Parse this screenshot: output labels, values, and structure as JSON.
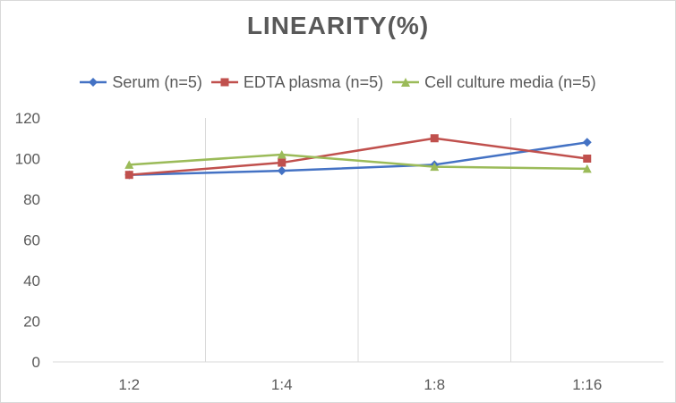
{
  "chart_data": {
    "type": "line",
    "title": "LINEARITY(%)",
    "categories": [
      "1:2",
      "1:4",
      "1:8",
      "1:16"
    ],
    "series": [
      {
        "name": "Serum (n=5)",
        "values": [
          92,
          94,
          97,
          108
        ],
        "color": "#4472C4",
        "marker": "diamond"
      },
      {
        "name": "EDTA plasma (n=5)",
        "values": [
          92,
          98,
          110,
          100
        ],
        "color": "#C0504D",
        "marker": "square"
      },
      {
        "name": "Cell culture media (n=5)",
        "values": [
          97,
          102,
          96,
          95
        ],
        "color": "#9BBB59",
        "marker": "triangle"
      }
    ],
    "ylim": [
      0,
      120
    ],
    "yticks": [
      "0",
      "20",
      "40",
      "60",
      "80",
      "100",
      "120"
    ],
    "xlabel": "",
    "ylabel": "",
    "grid": "vertical",
    "legend_position": "top",
    "colors": {
      "text": "#595959",
      "gridline": "#d9d9d9",
      "axis": "#d9d9d9"
    }
  }
}
